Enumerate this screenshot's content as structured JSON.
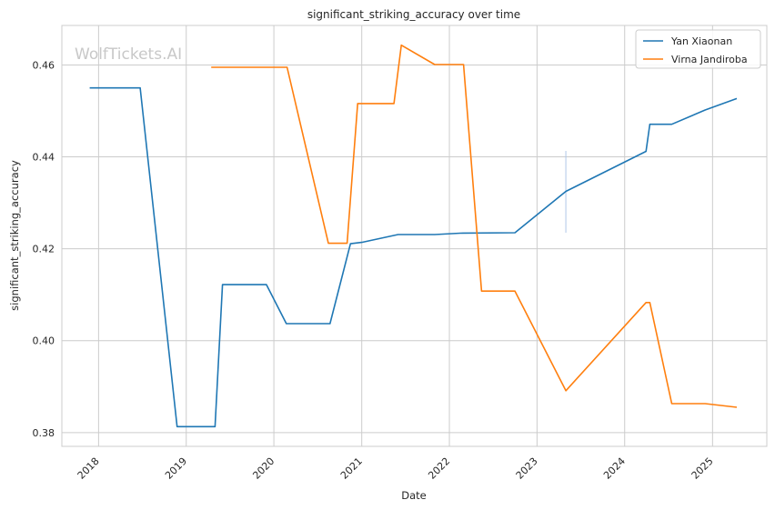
{
  "watermark": "WolfTickets.AI",
  "chart_data": {
    "type": "line",
    "title": "significant_striking_accuracy over time",
    "xlabel": "Date",
    "ylabel": "significant_striking_accuracy",
    "xlim": [
      "2017-08-01",
      "2025-08-15"
    ],
    "ylim": [
      0.377,
      0.4686
    ],
    "x_ticks": [
      "2018",
      "2019",
      "2020",
      "2021",
      "2022",
      "2023",
      "2024",
      "2025"
    ],
    "y_ticks": [
      "0.38",
      "0.40",
      "0.42",
      "0.44",
      "0.46"
    ],
    "grid": true,
    "legend_position": "top-right",
    "series": [
      {
        "name": "Yan Xiaonan",
        "color": "#1f77b4",
        "points": [
          [
            "2017-11-25",
            0.455
          ],
          [
            "2018-06-23",
            0.455
          ],
          [
            "2018-11-24",
            0.3813
          ],
          [
            "2019-05-01",
            0.3813
          ],
          [
            "2019-06-01",
            0.4122
          ],
          [
            "2019-12-01",
            0.4122
          ],
          [
            "2020-02-22",
            0.4037
          ],
          [
            "2020-08-22",
            0.4037
          ],
          [
            "2020-11-15",
            0.4211
          ],
          [
            "2021-01-01",
            0.4214
          ],
          [
            "2021-06-01",
            0.4231
          ],
          [
            "2021-11-01",
            0.4231
          ],
          [
            "2022-02-15",
            0.4234
          ],
          [
            "2022-10-01",
            0.4235
          ],
          [
            "2023-05-01",
            0.4325
          ],
          [
            "2024-03-30",
            0.4412
          ],
          [
            "2024-04-15",
            0.4471
          ],
          [
            "2024-07-15",
            0.4471
          ],
          [
            "2024-12-01",
            0.4502
          ],
          [
            "2025-04-12",
            0.4527
          ]
        ]
      },
      {
        "name": "Virna Jandiroba",
        "color": "#ff7f0e",
        "points": [
          [
            "2019-04-15",
            0.4595
          ],
          [
            "2020-02-25",
            0.4595
          ],
          [
            "2020-08-15",
            0.4212
          ],
          [
            "2020-11-01",
            0.4212
          ],
          [
            "2020-12-15",
            0.4516
          ],
          [
            "2021-05-15",
            0.4516
          ],
          [
            "2021-06-15",
            0.4643
          ],
          [
            "2021-11-01",
            0.4601
          ],
          [
            "2022-03-01",
            0.4601
          ],
          [
            "2022-05-15",
            0.4108
          ],
          [
            "2022-10-01",
            0.4108
          ],
          [
            "2023-05-01",
            0.3891
          ],
          [
            "2024-03-30",
            0.4083
          ],
          [
            "2024-04-15",
            0.4083
          ],
          [
            "2024-07-15",
            0.3863
          ],
          [
            "2024-12-01",
            0.3863
          ],
          [
            "2025-04-12",
            0.3855
          ]
        ]
      }
    ],
    "annotations": [
      {
        "type": "vertical-segment",
        "x": "2023-05-01",
        "y_range": [
          0.4235,
          0.4413
        ],
        "color": "#aec7e8"
      }
    ]
  }
}
